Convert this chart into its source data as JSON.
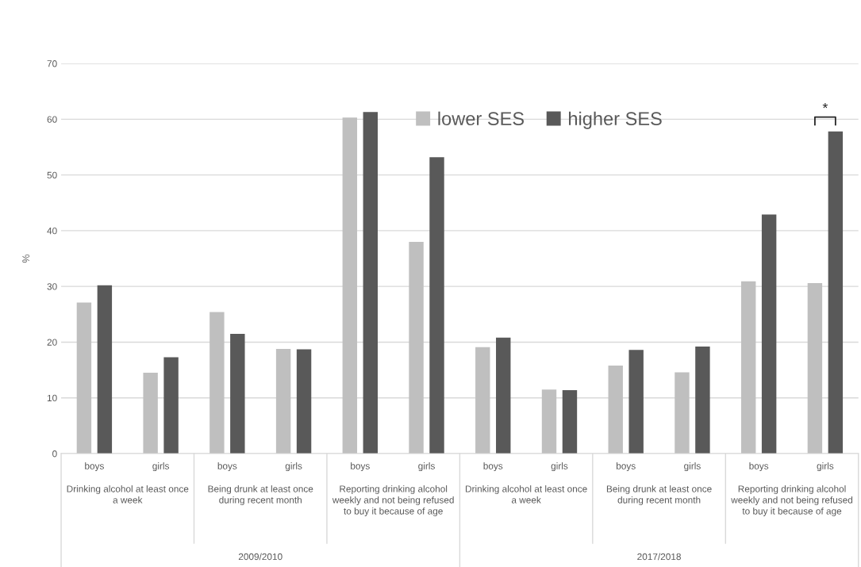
{
  "chart_data": {
    "type": "bar",
    "ylabel": "%",
    "categories": [
      "boys",
      "girls",
      "boys",
      "girls",
      "boys",
      "girls",
      "boys",
      "girls",
      "boys",
      "girls",
      "boys",
      "girls"
    ],
    "series": [
      {
        "name": "lower SES",
        "color": "#bfbfbf",
        "values": [
          27.1,
          14.5,
          25.4,
          18.8,
          60.3,
          38.0,
          19.1,
          11.5,
          15.8,
          14.6,
          30.9,
          30.6
        ]
      },
      {
        "name": "higher SES",
        "color": "#595959",
        "values": [
          30.2,
          17.3,
          21.5,
          18.7,
          61.3,
          53.2,
          20.8,
          11.4,
          18.6,
          19.2,
          42.9,
          57.8
        ]
      }
    ],
    "ylim": [
      0,
      70
    ],
    "yticks": [
      0,
      10,
      20,
      30,
      40,
      50,
      60,
      70
    ],
    "grid": "y",
    "legend": "top",
    "annotations": [
      "Drinking alcohol at least once a week",
      "Being drunk at least once during recent month",
      "Reporting drinking alcohol weekly and not being refused to buy it because of age",
      "Drinking alcohol at least once a week",
      "Being drunk at least once during recent month",
      "Reporting drinking alcohol weekly and not being refused to buy it because of age",
      "2009/2010",
      "2017/2018",
      "*"
    ]
  }
}
